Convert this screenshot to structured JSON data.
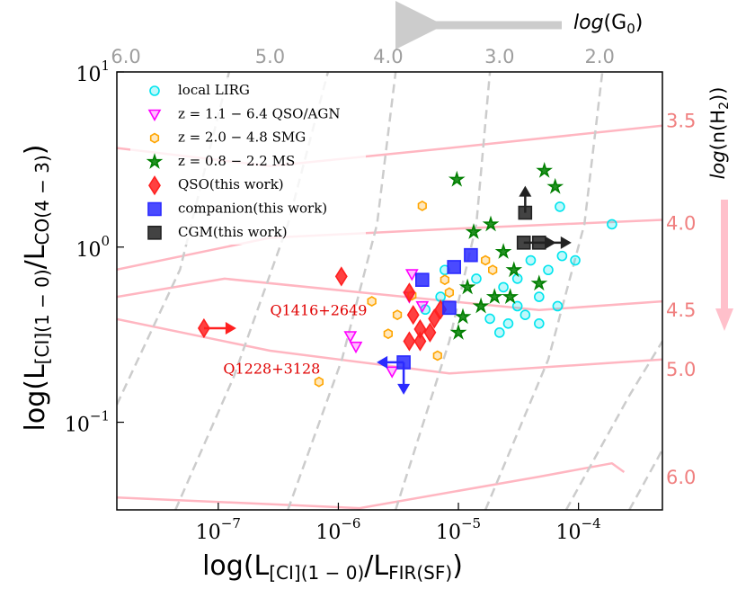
{
  "chart_data": {
    "type": "scatter",
    "xlabel": {
      "main": "log(L",
      "sub1": "[CI](1 − 0)",
      "mid": "/L",
      "sub2": "FIR(SF)",
      "end": ")"
    },
    "ylabel": {
      "main": "log(L",
      "sub1": "[CI](1 − 0)",
      "mid": "/L",
      "sub2": "CO(4 − 3)",
      "end": ")"
    },
    "log_x": true,
    "log_y": true,
    "xlim": [
      1.43e-08,
      0.0005
    ],
    "ylim": [
      0.0316,
      10
    ],
    "xticks": [
      {
        "value": 1e-07,
        "label": "10",
        "exponent": "−7"
      },
      {
        "value": 1e-06,
        "label": "10",
        "exponent": "−6"
      },
      {
        "value": 1e-05,
        "label": "10",
        "exponent": "−5"
      },
      {
        "value": 0.0001,
        "label": "10",
        "exponent": "−4"
      }
    ],
    "yticks": [
      {
        "value": 0.1,
        "label": "10",
        "exponent": "−1"
      },
      {
        "value": 1,
        "label": "10",
        "exponent": "0"
      },
      {
        "value": 10,
        "label": "10",
        "exponent": "1"
      }
    ],
    "top_axis": {
      "label": {
        "pre": "log",
        "open": "(G",
        "sub": "0",
        "close": ")"
      },
      "color": "#9e9e9e",
      "ticks": [
        {
          "value": 6,
          "label": "6.0"
        },
        {
          "value": 5,
          "label": "5.0"
        },
        {
          "value": 4,
          "label": "4.0"
        },
        {
          "value": 3,
          "label": "3.0"
        },
        {
          "value": 2,
          "label": "2.0"
        }
      ],
      "tick_x": [
        1.7e-08,
        2.7e-07,
        2.6e-06,
        2.2e-05,
        0.00015
      ]
    },
    "right_axis": {
      "label": {
        "pre": "log",
        "open": "(n(H",
        "sub": "2",
        "close": "))"
      },
      "color": "#f08080",
      "ticks": [
        3.5,
        {
          "value": 4,
          "label": "4.0"
        },
        4.5,
        {
          "value": 5,
          "label": "5.0"
        },
        {
          "value": 6,
          "label": "6.0"
        }
      ],
      "tick_y": [
        5.2,
        1.35,
        0.43,
        0.198,
        0.0477
      ]
    },
    "g0_curves": {
      "color": "#cccccc",
      "lines": [
        {
          "x": [
            1.43e-08,
            4.8e-08,
            9.5e-08,
            1.23e-07
          ],
          "y": [
            0.126,
            0.744,
            4.94,
            10
          ]
        },
        {
          "x": [
            4.4e-08,
            1.34e-07,
            3.8e-07,
            8.2e-07
          ],
          "y": [
            0.0316,
            0.18,
            1.35,
            10
          ]
        },
        {
          "x": [
            3.8e-07,
            1.07e-06,
            2.1e-06,
            3e-06
          ],
          "y": [
            0.0316,
            0.228,
            1.35,
            10
          ]
        },
        {
          "x": [
            3e-06,
            8.4e-06,
            1.41e-05,
            1.83e-05
          ],
          "y": [
            0.0316,
            0.29,
            1.35,
            10
          ]
        },
        {
          "x": [
            1.68e-05,
            5.6e-05,
            0.000112,
            0.000158
          ],
          "y": [
            0.0316,
            0.228,
            1.35,
            10
          ]
        },
        {
          "x": [
            7.9e-05,
            0.000265,
            0.0005
          ],
          "y": [
            0.0316,
            0.142,
            0.29
          ]
        },
        {
          "x": [
            0.000265,
            0.0005
          ],
          "y": [
            0.0316,
            0.0697
          ]
        }
      ]
    },
    "n_curves": {
      "color": "#ffb6c1",
      "lines": [
        {
          "x": [
            1.43e-08,
            2.7e-07,
            8.4e-06,
            0.0005
          ],
          "y": [
            3.68,
            2.9,
            3.68,
            4.94
          ]
        },
        {
          "x": [
            1.43e-08,
            2.7e-07,
            8.4e-06,
            0.0005
          ],
          "y": [
            0.744,
            1.13,
            1.27,
            1.43
          ]
        },
        {
          "x": [
            1.43e-08,
            1.13e-07,
            3.6e-06,
            4.7e-05,
            0.0005
          ],
          "y": [
            0.52,
            0.66,
            0.52,
            0.437,
            0.49
          ]
        },
        {
          "x": [
            1.43e-08,
            2.7e-07,
            8.4e-06,
            0.0005
          ],
          "y": [
            0.388,
            0.256,
            0.19,
            0.228
          ]
        },
        {
          "x": [
            1.43e-08,
            1.5e-06,
            4.7e-05,
            0.00019,
            0.00024
          ],
          "y": [
            0.0372,
            0.0323,
            0.0489,
            0.0583,
            0.0519
          ]
        }
      ]
    },
    "series": [
      {
        "name": "local LIRG",
        "color": "#00e5ee",
        "marker": "o",
        "x": [
          0.00019,
          7e-05,
          4e-05,
          5.6e-05,
          7.3e-05,
          2.37e-05,
          3.1e-05,
          2.6e-05,
          4.7e-05,
          3.6e-05,
          1.83e-05,
          6.7e-05,
          1.41e-05,
          7.1e-06,
          5.3e-06,
          7.7e-06,
          9.4e-05,
          3.1e-05,
          2.2e-05,
          4.7e-05
        ],
        "values": [
          1.35,
          1.7,
          0.84,
          0.74,
          0.89,
          0.59,
          0.46,
          0.366,
          0.52,
          0.41,
          0.39,
          0.46,
          0.66,
          0.52,
          0.44,
          0.74,
          0.84,
          0.66,
          0.325,
          0.366
        ]
      },
      {
        "name": "z = 1.1 − 6.4 QSO/AGN",
        "color": "#ff00ff",
        "marker": "v",
        "x": [
          1.4e-06,
          2.8e-06,
          4.1e-06,
          5e-06,
          3.9e-06,
          1.26e-06
        ],
        "values": [
          0.27,
          0.195,
          0.7,
          0.46,
          0.52,
          0.31
        ]
      },
      {
        "name": "z = 2.0 − 4.8 SMG",
        "color": "#ffa500",
        "marker": "h",
        "x": [
          6.9e-07,
          5e-06,
          1.9e-06,
          2.6e-06,
          3.1e-06,
          6.7e-06,
          4.1e-06,
          7.7e-06,
          1.68e-05,
          1.93e-05,
          8.4e-06
        ],
        "values": [
          0.17,
          1.72,
          0.49,
          0.32,
          0.41,
          0.24,
          0.53,
          0.65,
          0.84,
          0.74,
          0.55
        ]
      },
      {
        "name": "z = 0.8 − 2.2 MS",
        "color": "#007f00",
        "marker": "*",
        "x": [
          9.7e-06,
          5.2e-05,
          6.4e-05,
          1.86e-05,
          1.34e-05,
          2.37e-05,
          2.9e-05,
          1.19e-05,
          1.54e-05,
          2e-05,
          1e-05,
          2.7e-05,
          4.7e-05,
          1.09e-05
        ],
        "values": [
          2.43,
          2.73,
          2.21,
          1.35,
          1.22,
          0.94,
          0.74,
          0.59,
          0.46,
          0.52,
          0.325,
          0.52,
          0.62,
          0.4
        ]
      },
      {
        "name": "QSO(this work)",
        "color": "#ff2020",
        "marker": "d",
        "x": [
          7.6e-08,
          1.06e-06,
          3.9e-06,
          4.2e-06,
          4.8e-06,
          5.8e-06,
          6.3e-06,
          7.1e-06,
          3.9e-06,
          4.8e-06
        ],
        "values": [
          0.344,
          0.68,
          0.55,
          0.41,
          0.34,
          0.325,
          0.39,
          0.44,
          0.29,
          0.29
        ],
        "limits": [
          "right",
          null,
          null,
          null,
          null,
          null,
          null,
          null,
          null,
          null
        ]
      },
      {
        "name": "companion(this work)",
        "color": "#2a2aff",
        "marker": "s",
        "x": [
          5e-06,
          9.2e-06,
          1.27e-05,
          8.4e-06,
          3.5e-06
        ],
        "values": [
          0.65,
          0.77,
          0.9,
          0.45,
          0.22
        ],
        "limits": [
          null,
          null,
          null,
          null,
          "left-down"
        ]
      },
      {
        "name": "CGM(this work)",
        "color": "#222222",
        "marker": "s",
        "x": [
          3.5e-05,
          3.6e-05,
          4.7e-05
        ],
        "values": [
          1.06,
          1.57,
          1.06
        ],
        "limits": [
          "right",
          "up",
          "right"
        ]
      }
    ],
    "annotations": [
      {
        "text": "Q1416+2649",
        "x": 2.7e-07,
        "y": 0.43,
        "color": "#e00000"
      },
      {
        "text": "Q1228+3128",
        "x": 1.1e-07,
        "y": 0.2,
        "color": "#e00000"
      }
    ]
  }
}
